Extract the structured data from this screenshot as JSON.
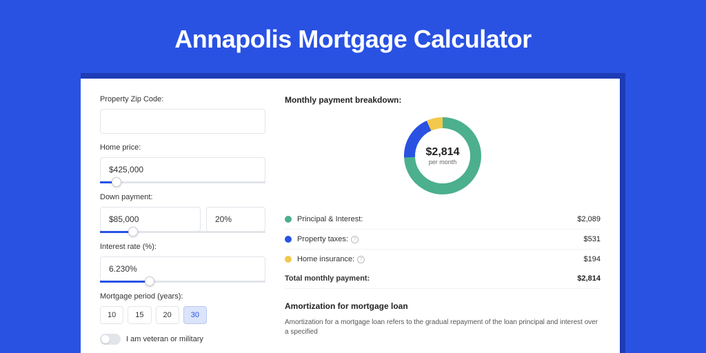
{
  "page": {
    "title": "Annapolis Mortgage Calculator",
    "background_color": "#2952e3",
    "shadow_color": "#1d3cb5",
    "card_background": "#ffffff"
  },
  "form": {
    "zip": {
      "label": "Property Zip Code:",
      "value": ""
    },
    "home_price": {
      "label": "Home price:",
      "value": "$425,000",
      "slider_pct": 10
    },
    "down_payment": {
      "label": "Down payment:",
      "value": "$85,000",
      "pct_value": "20%",
      "slider_pct": 20
    },
    "interest_rate": {
      "label": "Interest rate (%):",
      "value": "6.230%",
      "slider_pct": 30
    },
    "mortgage_period": {
      "label": "Mortgage period (years):",
      "options": [
        "10",
        "15",
        "20",
        "30"
      ],
      "selected": "30"
    },
    "veteran": {
      "label": "I am veteran or military",
      "checked": false
    }
  },
  "breakdown": {
    "title": "Monthly payment breakdown:",
    "center_amount": "$2,814",
    "center_sub": "per month",
    "donut": {
      "segments": [
        {
          "color": "#4caf8e",
          "pct": 74.3
        },
        {
          "color": "#2952e3",
          "pct": 18.9
        },
        {
          "color": "#f2c94c",
          "pct": 6.8
        }
      ],
      "stroke_width": 16
    },
    "items": [
      {
        "color": "#4caf8e",
        "label": "Principal & Interest:",
        "value": "$2,089",
        "help": false
      },
      {
        "color": "#2952e3",
        "label": "Property taxes:",
        "value": "$531",
        "help": true
      },
      {
        "color": "#f2c94c",
        "label": "Home insurance:",
        "value": "$194",
        "help": true
      }
    ],
    "total": {
      "label": "Total monthly payment:",
      "value": "$2,814"
    }
  },
  "amortization": {
    "title": "Amortization for mortgage loan",
    "text": "Amortization for a mortgage loan refers to the gradual repayment of the loan principal and interest over a specified"
  }
}
